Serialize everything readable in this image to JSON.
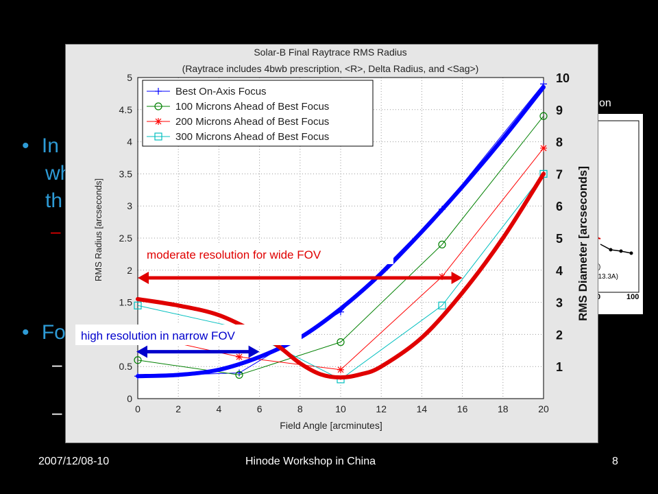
{
  "slide": {
    "background_color": "#000000",
    "bullet_color": "#2e9bd6",
    "bullets_partial": [
      {
        "marker": "•",
        "text": "In"
      },
      {
        "marker": "",
        "text": "wh"
      },
      {
        "marker": "",
        "text": "th"
      },
      {
        "marker": "–",
        "text": ""
      },
      {
        "marker": "•",
        "text": "Fo"
      },
      {
        "marker": "–",
        "text": ""
      },
      {
        "marker": "–",
        "text": ""
      }
    ],
    "background_figure_labels": [
      "tion",
      "/4A)",
      "ne(13.3A)"
    ],
    "background_figure_ticks": [
      "0",
      "100"
    ],
    "footer": {
      "date": "2007/12/08-10",
      "title": "Hinode Workshop in China",
      "page": "8"
    }
  },
  "chart_data": {
    "type": "line",
    "title": "Solar-B Final Raytrace RMS Radius",
    "subtitle": "(Raytrace includes 4bwb prescription, <R>, Delta Radius, and <Sag>)",
    "xlabel": "Field Angle [arcminutes]",
    "ylabel": "RMS Radius [arcseconds]",
    "ylabel_right": "RMS Diameter [arcseconds]",
    "xlim": [
      0,
      20
    ],
    "ylim": [
      0,
      5
    ],
    "ylim_right": [
      0,
      10
    ],
    "xticks": [
      "0",
      "2",
      "4",
      "6",
      "8",
      "10",
      "12",
      "14",
      "16",
      "18",
      "20"
    ],
    "yticks": [
      "0",
      "0.5",
      "1",
      "1.5",
      "2",
      "2.5",
      "3",
      "3.5",
      "4",
      "4.5",
      "5"
    ],
    "yticks_right": [
      "1",
      "2",
      "3",
      "4",
      "5",
      "6",
      "7",
      "8",
      "9",
      "10"
    ],
    "legend_position": "top-left",
    "grid": true,
    "series": [
      {
        "name": "Best On-Axis Focus",
        "color": "#0000ff",
        "marker": "plus",
        "x": [
          0,
          5,
          10,
          15,
          20
        ],
        "y": [
          0.35,
          0.4,
          1.35,
          2.95,
          4.9
        ]
      },
      {
        "name": "100 Microns Ahead of Best Focus",
        "color": "#008000",
        "marker": "circle",
        "x": [
          0,
          5,
          10,
          15,
          20
        ],
        "y": [
          0.6,
          0.37,
          0.88,
          2.4,
          4.4
        ]
      },
      {
        "name": "200 Microns Ahead of Best Focus",
        "color": "#ff0000",
        "marker": "star",
        "x": [
          0,
          5,
          10,
          15,
          20
        ],
        "y": [
          1.0,
          0.65,
          0.45,
          1.9,
          3.9
        ]
      },
      {
        "name": "300 Microns Ahead of Best Focus",
        "color": "#00bfbf",
        "marker": "square",
        "x": [
          0,
          5,
          10,
          15,
          20
        ],
        "y": [
          1.45,
          1.1,
          0.3,
          1.45,
          3.5
        ]
      }
    ],
    "overlay_curves": [
      {
        "color": "#0000ff",
        "x": [
          0,
          2,
          4,
          6,
          8,
          10,
          12,
          14,
          16,
          18,
          20
        ],
        "y": [
          0.35,
          0.37,
          0.45,
          0.65,
          0.95,
          1.4,
          1.95,
          2.6,
          3.3,
          4.05,
          4.85
        ]
      },
      {
        "color": "#e00000",
        "x": [
          0,
          2,
          4,
          6,
          7,
          8,
          9,
          10,
          11,
          12,
          14,
          16,
          18,
          20
        ],
        "y": [
          1.55,
          1.45,
          1.3,
          1.0,
          0.8,
          0.55,
          0.38,
          0.33,
          0.38,
          0.5,
          0.95,
          1.65,
          2.5,
          3.5
        ]
      }
    ],
    "annotations": [
      {
        "text": "moderate resolution for wide FOV",
        "color": "#e00000",
        "arrow_x": [
          0,
          16
        ],
        "arrow_y": 1.88
      },
      {
        "text": "high resolution in narrow FOV",
        "color": "#0000cc",
        "arrow_x": [
          0,
          6
        ],
        "arrow_y": 0.73
      }
    ]
  }
}
